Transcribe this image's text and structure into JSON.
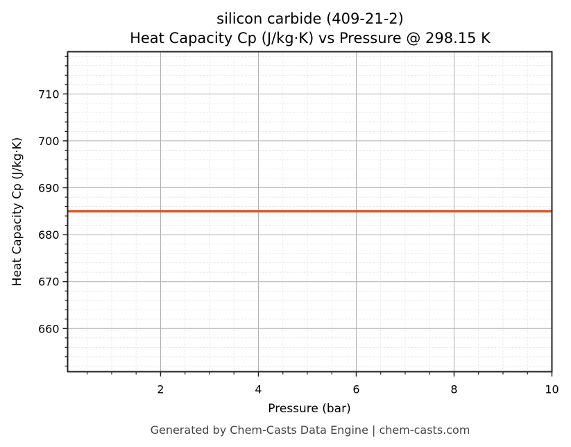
{
  "chart_data": {
    "type": "line",
    "title": "silicon carbide (409-21-2)",
    "subtitle": "Heat Capacity Cp (J/kg·K) vs Pressure @ 298.15 K",
    "xlabel": "Pressure (bar)",
    "ylabel": "Heat Capacity Cp (J/kg·K)",
    "xlim": [
      0.1,
      10
    ],
    "ylim": [
      650.8,
      719
    ],
    "x_ticks": [
      2,
      4,
      6,
      8,
      10
    ],
    "x_tick_labels": [
      "2",
      "4",
      "6",
      "8",
      "10"
    ],
    "y_ticks": [
      660,
      670,
      680,
      690,
      700,
      710
    ],
    "y_tick_labels": [
      "660",
      "670",
      "680",
      "690",
      "700",
      "710"
    ],
    "grid": true,
    "minor_grid": true,
    "legend": null,
    "series": [
      {
        "name": "Cp",
        "color": "#d9541e",
        "x": [
          0.1,
          10
        ],
        "y": [
          685,
          685
        ]
      }
    ]
  },
  "footer": "Generated by Chem-Casts Data Engine | chem-casts.com"
}
